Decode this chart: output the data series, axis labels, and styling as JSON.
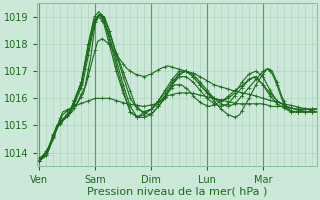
{
  "bg_color": "#cce8d8",
  "grid_color": "#aacfba",
  "line_color": "#1a6b1a",
  "xlabel": "Pression niveau de la mer( hPa )",
  "day_labels": [
    "Ven",
    "Sam",
    "Dim",
    "Lun",
    "Mar"
  ],
  "day_positions": [
    0,
    48,
    96,
    144,
    192
  ],
  "ylim": [
    1013.5,
    1019.5
  ],
  "yticks": [
    1014,
    1015,
    1016,
    1017,
    1018,
    1019
  ],
  "xlim": [
    -2,
    238
  ],
  "xlabel_fontsize": 8,
  "tick_fontsize": 7,
  "line_width": 0.8,
  "marker_size": 2.5
}
